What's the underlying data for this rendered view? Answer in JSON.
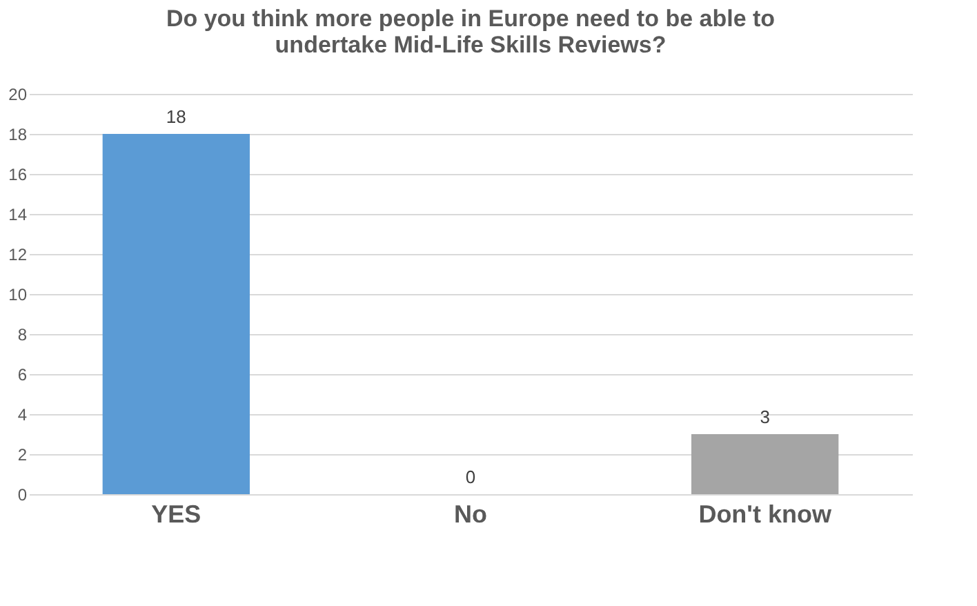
{
  "chart_data": {
    "type": "bar",
    "title": "Do you think more people in Europe need to be able to undertake Mid-Life Skills Reviews?",
    "categories": [
      "YES",
      "No",
      "Don't know"
    ],
    "values": [
      18,
      0,
      3
    ],
    "colors": [
      "#5b9bd5",
      "#ed7d31",
      "#a5a5a5"
    ],
    "ylim": [
      0,
      20
    ],
    "yticks": [
      0,
      2,
      4,
      6,
      8,
      10,
      12,
      14,
      16,
      18,
      20
    ],
    "grid": "y",
    "data_labels": true
  }
}
